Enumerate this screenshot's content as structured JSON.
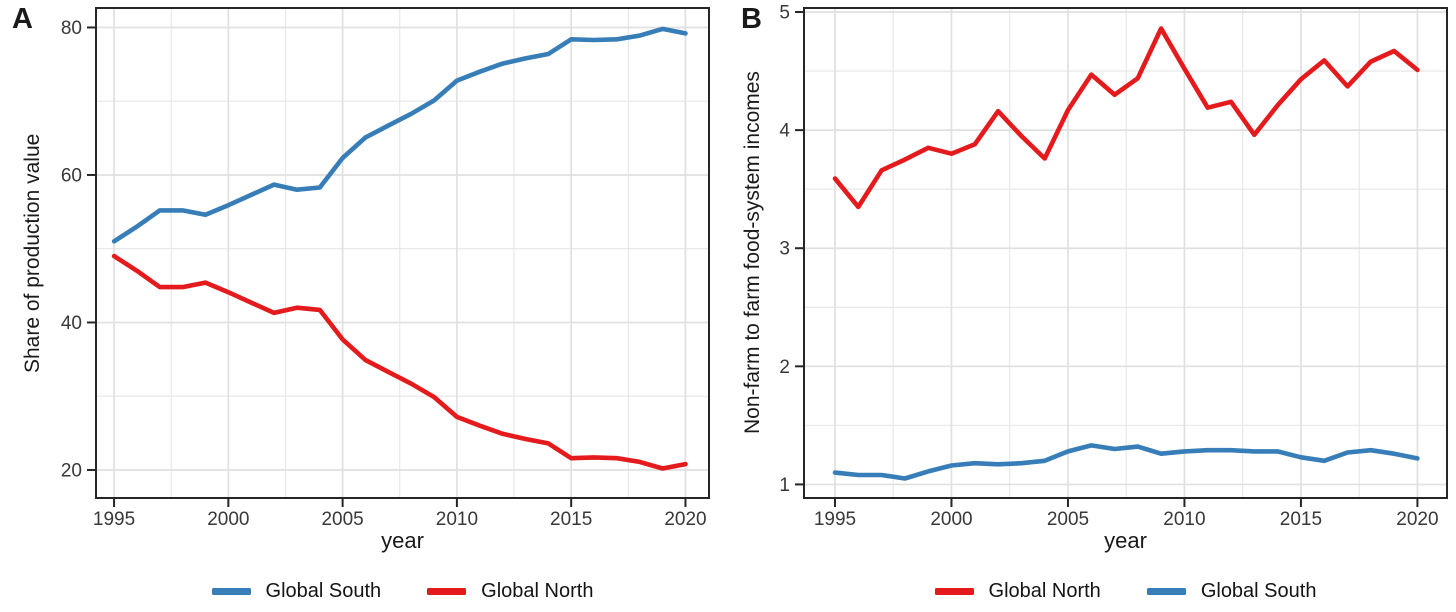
{
  "panels": {
    "a": {
      "letter": "A"
    },
    "b": {
      "letter": "B"
    }
  },
  "chart_data": [
    {
      "panel_label": "A",
      "type": "line",
      "xlabel": "year",
      "ylabel": "Share of production value",
      "x": [
        1995,
        1996,
        1997,
        1998,
        1999,
        2000,
        2001,
        2002,
        2003,
        2004,
        2005,
        2006,
        2007,
        2008,
        2009,
        2010,
        2011,
        2012,
        2013,
        2014,
        2015,
        2016,
        2017,
        2018,
        2019,
        2020
      ],
      "xticks": [
        1995,
        2000,
        2005,
        2010,
        2015,
        2020
      ],
      "yticks": [
        20,
        40,
        60,
        80
      ],
      "xlim": [
        1994.21,
        2021.03
      ],
      "ylim": [
        16.2,
        82.64
      ],
      "grid": "major+minor",
      "legend_position": "bottom-center",
      "series": [
        {
          "name": "Global South",
          "color": "#377EB8",
          "values": [
            51.0,
            53.0,
            55.2,
            55.2,
            54.6,
            55.9,
            57.3,
            58.7,
            58.0,
            58.3,
            62.3,
            65.1,
            66.7,
            68.3,
            70.1,
            72.8,
            74.0,
            75.1,
            75.8,
            76.4,
            78.4,
            78.3,
            78.4,
            78.9,
            79.8,
            79.2
          ]
        },
        {
          "name": "Global North",
          "color": "#E41A1C",
          "values": [
            49.0,
            47.0,
            44.8,
            44.8,
            45.4,
            44.1,
            42.7,
            41.3,
            42.0,
            41.7,
            37.7,
            34.9,
            33.3,
            31.7,
            29.9,
            27.2,
            26.0,
            24.9,
            24.2,
            23.6,
            21.6,
            21.7,
            21.6,
            21.1,
            20.2,
            20.8
          ]
        }
      ]
    },
    {
      "panel_label": "B",
      "type": "line",
      "xlabel": "year",
      "ylabel": "Non-farm to farm food-system incomes",
      "x": [
        1995,
        1996,
        1997,
        1998,
        1999,
        2000,
        2001,
        2002,
        2003,
        2004,
        2005,
        2006,
        2007,
        2008,
        2009,
        2010,
        2011,
        2012,
        2013,
        2014,
        2015,
        2016,
        2017,
        2018,
        2019,
        2020
      ],
      "xticks": [
        1995,
        2000,
        2005,
        2010,
        2015,
        2020
      ],
      "yticks": [
        1,
        2,
        3,
        4,
        5
      ],
      "xlim": [
        1993.67,
        2021.27
      ],
      "ylim": [
        0.885,
        5.034
      ],
      "grid": "major+minor",
      "legend_position": "bottom-center",
      "series": [
        {
          "name": "Global North",
          "color": "#E41A1C",
          "values": [
            3.59,
            3.35,
            3.66,
            3.75,
            3.85,
            3.8,
            3.88,
            4.16,
            3.95,
            3.76,
            4.17,
            4.47,
            4.3,
            4.44,
            4.86,
            4.52,
            4.19,
            4.24,
            3.96,
            4.21,
            4.43,
            4.59,
            4.37,
            4.58,
            4.67,
            4.51
          ]
        },
        {
          "name": "Global South",
          "color": "#377EB8",
          "values": [
            1.1,
            1.08,
            1.08,
            1.05,
            1.11,
            1.16,
            1.18,
            1.17,
            1.18,
            1.2,
            1.28,
            1.33,
            1.3,
            1.32,
            1.26,
            1.28,
            1.29,
            1.29,
            1.28,
            1.28,
            1.23,
            1.2,
            1.27,
            1.29,
            1.26,
            1.22
          ]
        }
      ]
    }
  ]
}
